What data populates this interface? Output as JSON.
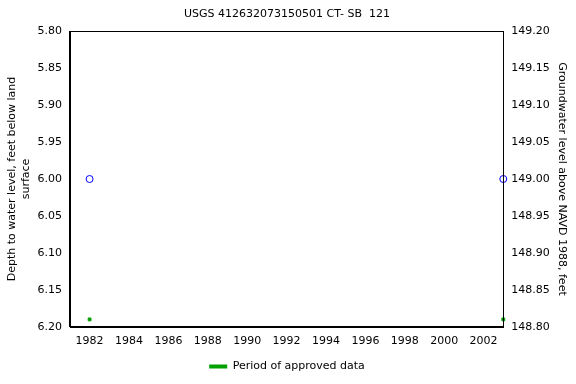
{
  "chart_data": {
    "type": "scatter",
    "title": "USGS 412632073150501 CT- SB  121",
    "y_label": [
      "Depth to water level, feet below land",
      "surface"
    ],
    "y2_label": "Groundwater level above NAVD 1988, feet",
    "x": [
      1982,
      2003
    ],
    "series": [
      {
        "color": "#0000ff",
        "marker": "circle",
        "values": [
          6.0,
          6.0
        ]
      },
      {
        "name": "Period of approved data",
        "color": "#00a000",
        "marker": "square",
        "values": [
          6.19,
          6.19
        ]
      }
    ],
    "xlim": [
      1981,
      2003
    ],
    "xticks": [
      1982,
      1984,
      1986,
      1988,
      1990,
      1992,
      1994,
      1996,
      1998,
      2000,
      2002
    ],
    "ylim": [
      6.2,
      5.8
    ],
    "yticks": [
      {
        "value": 5.8,
        "label": "5.80"
      },
      {
        "value": 5.85,
        "label": "5.85"
      },
      {
        "value": 5.9,
        "label": "5.90"
      },
      {
        "value": 5.95,
        "label": "5.95"
      },
      {
        "value": 6.0,
        "label": "6.00"
      },
      {
        "value": 6.05,
        "label": "6.05"
      },
      {
        "value": 6.1,
        "label": "6.10"
      },
      {
        "value": 6.15,
        "label": "6.15"
      },
      {
        "value": 6.2,
        "label": "6.20"
      }
    ],
    "y2lim": [
      148.8,
      149.2
    ],
    "y2ticks": [
      {
        "value": 148.8,
        "label": "148.80"
      },
      {
        "value": 148.85,
        "label": "148.85"
      },
      {
        "value": 148.9,
        "label": "148.90"
      },
      {
        "value": 148.95,
        "label": "148.95"
      },
      {
        "value": 149.0,
        "label": "149.00"
      },
      {
        "value": 149.05,
        "label": "149.05"
      },
      {
        "value": 149.1,
        "label": "149.10"
      },
      {
        "value": 149.15,
        "label": "149.15"
      },
      {
        "value": 149.2,
        "label": "149.20"
      }
    ],
    "grid": false,
    "legend": "bottom"
  }
}
